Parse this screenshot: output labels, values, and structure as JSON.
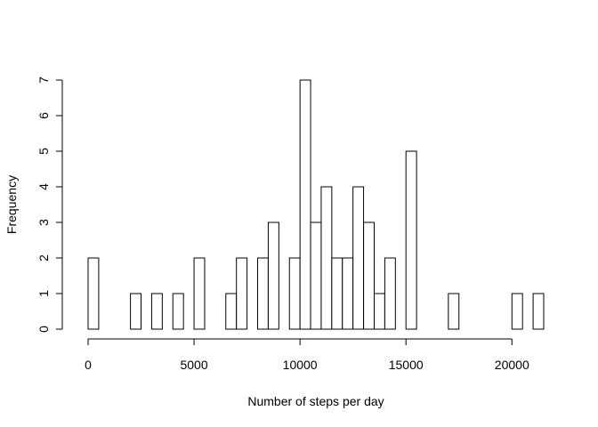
{
  "chart_data": {
    "type": "bar",
    "subtype": "histogram",
    "title": "",
    "xlabel": "Number of steps per day",
    "ylabel": "Frequency",
    "bin_width": 500,
    "bin_start": 0,
    "values": [
      2,
      0,
      0,
      0,
      1,
      0,
      1,
      0,
      1,
      0,
      2,
      0,
      0,
      1,
      2,
      0,
      2,
      3,
      0,
      2,
      7,
      3,
      4,
      2,
      2,
      4,
      3,
      1,
      2,
      0,
      5,
      0,
      0,
      0,
      1,
      0,
      0,
      0,
      0,
      0,
      1,
      0,
      1
    ],
    "xlim": [
      0,
      21500
    ],
    "ylim": [
      0,
      7
    ],
    "x_ticks": [
      0,
      5000,
      10000,
      15000,
      20000
    ],
    "y_ticks": [
      0,
      1,
      2,
      3,
      4,
      5,
      6,
      7
    ],
    "x_tick_labels": [
      "0",
      "5000",
      "10000",
      "15000",
      "20000"
    ],
    "y_tick_labels": [
      "0",
      "1",
      "2",
      "3",
      "4",
      "5",
      "6",
      "7"
    ],
    "grid": false,
    "legend": "none",
    "bar_fill": "#ffffff",
    "bar_stroke": "#000000"
  }
}
